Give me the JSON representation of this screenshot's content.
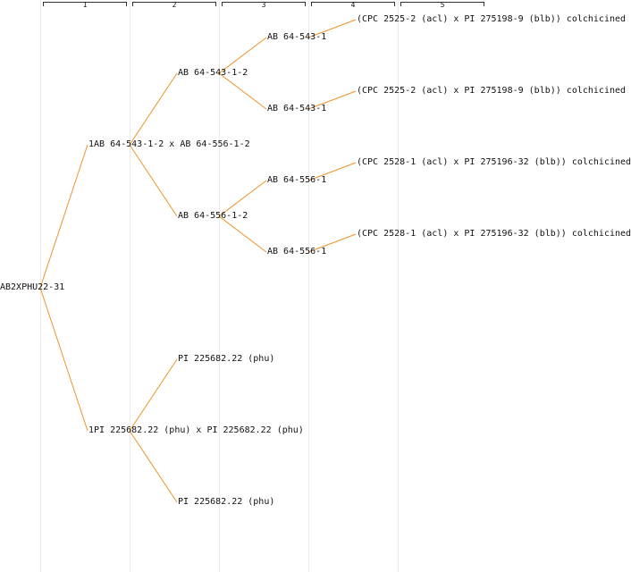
{
  "generations": [
    "1",
    "2",
    "3",
    "4",
    "5"
  ],
  "colors": {
    "edge": "#f0922a",
    "text": "#111111",
    "band": "#ececec"
  },
  "tree": {
    "root": "AB2XPHU22-31",
    "gen1": [
      "1AB 64-543-1-2 x AB 64-556-1-2",
      "1PI 225682.22 (phu) x PI 225682.22 (phu)"
    ],
    "gen2": [
      "AB 64-543-1-2",
      "AB 64-556-1-2",
      "PI 225682.22 (phu)",
      "PI 225682.22 (phu)"
    ],
    "gen3": [
      "AB 64-543-1",
      "AB 64-543-1",
      "AB 64-556-1",
      "AB 64-556-1"
    ],
    "gen4": [
      "(CPC 2525-2 (acl) x PI 275198-9 (blb)) colchicined",
      "(CPC 2525-2 (acl) x PI 275198-9 (blb)) colchicined",
      "(CPC 2528-1 (acl) x PI 275196-32 (blb)) colchicined",
      "(CPC 2528-1 (acl) x PI 275196-32 (blb)) colchicined"
    ]
  }
}
